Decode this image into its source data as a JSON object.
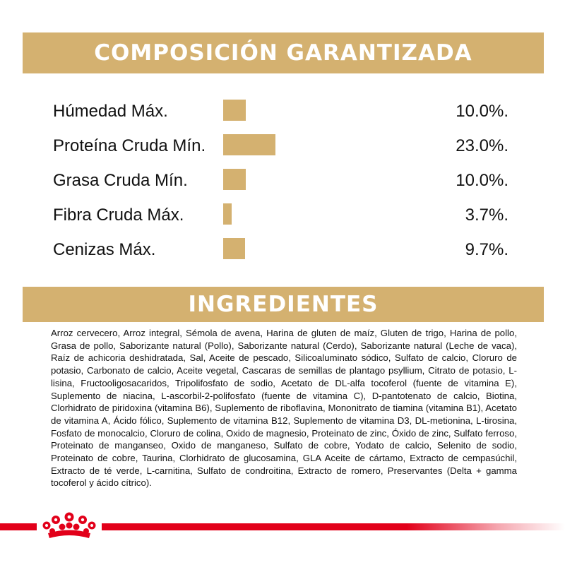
{
  "composition": {
    "title": "COMPOSICIÓN GARANTIZADA"
  },
  "chart_data": {
    "type": "bar",
    "title": "COMPOSICIÓN GARANTIZADA",
    "categories": [
      "Húmedad Máx.",
      "Proteína Cruda Mín.",
      "Grasa Cruda Mín.",
      "Fibra Cruda Máx.",
      "Cenizas Máx."
    ],
    "values": [
      10.0,
      23.0,
      10.0,
      3.7,
      9.7
    ],
    "value_labels": [
      "10.0%.",
      "23.0%.",
      "10.0%.",
      "3.7%.",
      "9.7%."
    ],
    "orientation": "horizontal",
    "bar_color": "#d4b170",
    "grid": false,
    "legend": "none"
  },
  "ingredients": {
    "title": "INGREDIENTES",
    "text": "Arroz cervecero, Arroz integral, Sémola de avena, Harina de gluten de maíz, Gluten de trigo, Harina de pollo, Grasa de pollo, Saborizante natural (Pollo), Saborizante natural (Cerdo), Saborizante natural (Leche de vaca), Raíz de achicoria deshidratada, Sal, Aceite de pescado, Silicoaluminato sódico, Sulfato de calcio, Cloruro de potasio, Carbonato de calcio, Aceite vegetal, Cascaras de semillas de plantago psyllium, Citrato de potasio, L-lisina, Fructooligosacaridos, Tripolifosfato de sodio, Acetato de DL-alfa tocoferol (fuente de vitamina E), Suplemento de niacina, L-ascorbil-2-polifosfato (fuente de vitamina C), D-pantotenato de calcio, Biotina, Clorhidrato de piridoxina (vitamina B6), Suplemento de riboflavina, Mononitrato de tiamina (vitamina B1), Acetato de vitamina A, Ácido fólico, Suplemento de vitamina B12, Suplemento de vitamina D3, DL-metionina, L-tirosina, Fosfato de monocalcio, Cloruro de colina, Oxido de magnesio, Proteinato de zinc, Óxido de zinc, Sulfato ferroso, Proteinato de manganseo, Oxido de manganeso, Sulfato de cobre, Yodato de calcio, Selenito de sodio, Proteinato de cobre, Taurina, Clorhidrato de glucosamina, GLA Aceite de cártamo, Extracto de cempasúchil, Extracto de té verde, L-carnitina, Sulfato de condroitina, Extracto de romero, Preservantes (Delta + gamma tocoferol y ácido cítrico)."
  },
  "brand": {
    "icon": "royal-canin-crown-icon",
    "accent_color": "#e2001a",
    "gold_color": "#d4b170"
  }
}
